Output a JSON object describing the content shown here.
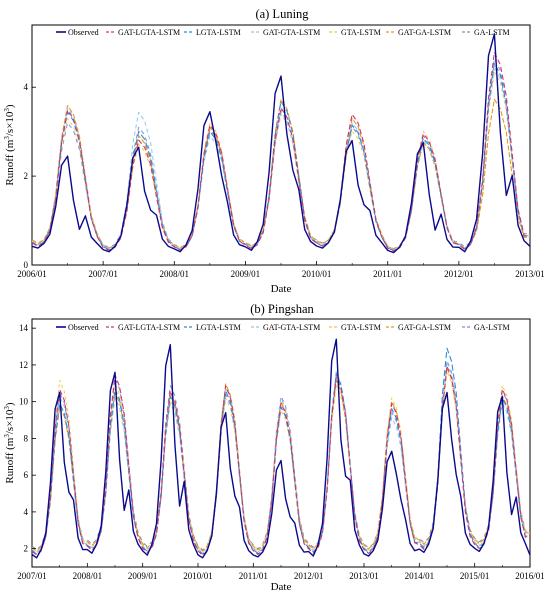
{
  "chart_data": [
    {
      "type": "line",
      "title": "(a) Luning",
      "xlabel": "Date",
      "ylabel_main": "Runoff (m",
      "ylabel_sup1": "3",
      "ylabel_mid": "/s×10",
      "ylabel_sup2": "3",
      "ylabel_end": ")",
      "x_ticks": [
        "2006/01",
        "2007/01",
        "2008/01",
        "2009/01",
        "2010/01",
        "2011/01",
        "2012/01",
        "2013/01"
      ],
      "x_range": [
        "2006/01",
        "2013/01"
      ],
      "y_ticks": [
        "0",
        "2",
        "4"
      ],
      "ylim": [
        0,
        5.4
      ],
      "legend_position": "top",
      "series_names": [
        "Observed",
        "GAT-LGTA-LSTM",
        "LGTA-LSTM",
        "GAT-GTA-LSTM",
        "GTA-LSTM",
        "GAT-GA-LSTM",
        "GA-LSTM"
      ],
      "series_colors": [
        "#0a0a8c",
        "#d6336e",
        "#2f8ad8",
        "#8ec7ee",
        "#f2c84b",
        "#e39a1c",
        "#7a8fd6"
      ],
      "observed_yearly": [
        {
          "year": 2006,
          "peak": 2.45,
          "sub": 1.15,
          "low": 0.38
        },
        {
          "year": 2007,
          "peak": 2.65,
          "sub": 2.0,
          "low": 0.3
        },
        {
          "year": 2008,
          "peak": 3.45,
          "sub": 3.4,
          "low": 0.3
        },
        {
          "year": 2009,
          "peak": 4.25,
          "sub": 3.6,
          "low": 0.33
        },
        {
          "year": 2010,
          "peak": 2.8,
          "sub": 2.15,
          "low": 0.38
        },
        {
          "year": 2011,
          "peak": 2.75,
          "sub": 1.2,
          "low": 0.28
        },
        {
          "year": 2012,
          "peak": 5.2,
          "sub": 2.6,
          "low": 0.3
        }
      ],
      "model_peaks": [
        [
          3.6,
          3.55,
          3.65,
          3.4,
          3.7,
          3.3
        ],
        [
          2.9,
          3.1,
          3.55,
          2.8,
          3.0,
          3.2
        ],
        [
          3.25,
          3.1,
          3.0,
          3.3,
          3.2,
          3.15
        ],
        [
          3.65,
          3.8,
          3.55,
          3.5,
          3.85,
          3.6
        ],
        [
          3.5,
          3.25,
          3.3,
          3.1,
          3.4,
          3.2
        ],
        [
          3.05,
          2.95,
          2.9,
          3.1,
          2.85,
          3.0
        ],
        [
          4.95,
          4.7,
          4.6,
          4.5,
          3.85,
          4.8
        ]
      ]
    },
    {
      "type": "line",
      "title": "(b) Pingshan",
      "xlabel": "Date",
      "ylabel_main": "Runoff (m",
      "ylabel_sup1": "3",
      "ylabel_mid": "/s×10",
      "ylabel_sup2": "3",
      "ylabel_end": ")",
      "x_ticks": [
        "2007/01",
        "2008/01",
        "2009/01",
        "2010/01",
        "2011/01",
        "2012/01",
        "2013/01",
        "2014/01",
        "2015/01",
        "2016/01"
      ],
      "x_range": [
        "2007/01",
        "2016/01"
      ],
      "y_ticks": [
        "2",
        "4",
        "6",
        "8",
        "10",
        "12",
        "14"
      ],
      "ylim": [
        1,
        14.5
      ],
      "legend_position": "top",
      "series_names": [
        "Observed",
        "GAT-LGTA-LSTM",
        "LGTA-LSTM",
        "GAT-GTA-LSTM",
        "GTA-LSTM",
        "GAT-GA-LSTM",
        "GA-LSTM"
      ],
      "series_colors": [
        "#0a0a8c",
        "#d6336e",
        "#2f8ad8",
        "#8ec7ee",
        "#f2c84b",
        "#e39a1c",
        "#7a8fd6"
      ],
      "observed_yearly": [
        {
          "year": 2007,
          "peak": 10.5,
          "sub": 8.0,
          "low": 1.5
        },
        {
          "year": 2008,
          "peak": 11.6,
          "sub": 6.0,
          "low": 1.75
        },
        {
          "year": 2009,
          "peak": 13.1,
          "sub": 6.5,
          "low": 1.65
        },
        {
          "year": 2010,
          "peak": 9.4,
          "sub": 7.6,
          "low": 1.5
        },
        {
          "year": 2011,
          "peak": 6.8,
          "sub": 5.5,
          "low": 1.55
        },
        {
          "year": 2012,
          "peak": 13.4,
          "sub": 9.5,
          "low": 1.6
        },
        {
          "year": 2013,
          "peak": 7.3,
          "sub": 7.2,
          "low": 1.6
        },
        {
          "year": 2014,
          "peak": 10.5,
          "sub": 9.5,
          "low": 1.8
        },
        {
          "year": 2015,
          "peak": 10.3,
          "sub": 5.5,
          "low": 1.85
        }
      ],
      "model_peaks": [
        [
          11.0,
          10.2,
          10.6,
          11.5,
          10.0,
          10.8
        ],
        [
          11.8,
          11.0,
          10.5,
          11.3,
          10.8,
          11.6
        ],
        [
          10.9,
          10.6,
          10.2,
          10.4,
          10.8,
          11.2
        ],
        [
          11.2,
          10.9,
          11.1,
          10.5,
          11.3,
          10.7
        ],
        [
          10.2,
          10.0,
          10.5,
          9.8,
          10.3,
          10.6
        ],
        [
          11.7,
          11.9,
          12.0,
          11.2,
          11.5,
          11.8
        ],
        [
          10.2,
          9.9,
          9.4,
          10.5,
          10.3,
          9.7
        ],
        [
          12.3,
          13.3,
          12.5,
          12.0,
          12.2,
          12.6
        ],
        [
          11.0,
          10.5,
          10.2,
          11.2,
          10.6,
          10.9
        ]
      ]
    }
  ]
}
